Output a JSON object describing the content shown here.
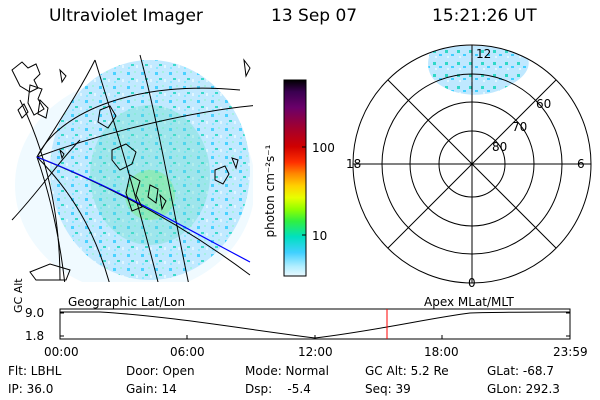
{
  "header": {
    "title": "Ultraviolet Imager",
    "date": "13 Sep 07",
    "time": "15:21:26 UT"
  },
  "left_panel_label": "Geographic Lat/Lon",
  "right_panel_label": "Apex MLat/MLT",
  "colorbar": {
    "unit": "photon cm⁻²s⁻¹",
    "ticks": [
      "100",
      "10"
    ],
    "colors": [
      "#000000",
      "#3a0050",
      "#6a006a",
      "#a00030",
      "#d00000",
      "#ff3000",
      "#ff8a00",
      "#ffd000",
      "#e8ff00",
      "#90ff00",
      "#30f040",
      "#00e0c0",
      "#40d0ff",
      "#b0eeff",
      "#e8f8ff"
    ]
  },
  "polar": {
    "mlt_labels": {
      "top": "12",
      "left": "18",
      "right": "6",
      "bottom": "0"
    },
    "lat_labels": [
      "60",
      "70",
      "80"
    ]
  },
  "altitude_plot": {
    "ylabel": "GC Alt",
    "yticks": [
      "9.0",
      "1.8"
    ],
    "xticks": [
      "00:00",
      "06:00",
      "12:00",
      "18:00",
      "23:59"
    ],
    "marker_color": "#ff0000"
  },
  "info": {
    "flt": "Flt: LBHL",
    "ip": "IP: 36.0",
    "door": "Door: Open",
    "gain": "Gain: 14",
    "mode": "Mode: Normal",
    "dsp": "Dsp:    -5.4",
    "gcalt": "GC Alt: 5.2 Re",
    "seq": "Seq: 39",
    "glat": "GLat: -68.7",
    "glon": "GLon: 292.3"
  }
}
